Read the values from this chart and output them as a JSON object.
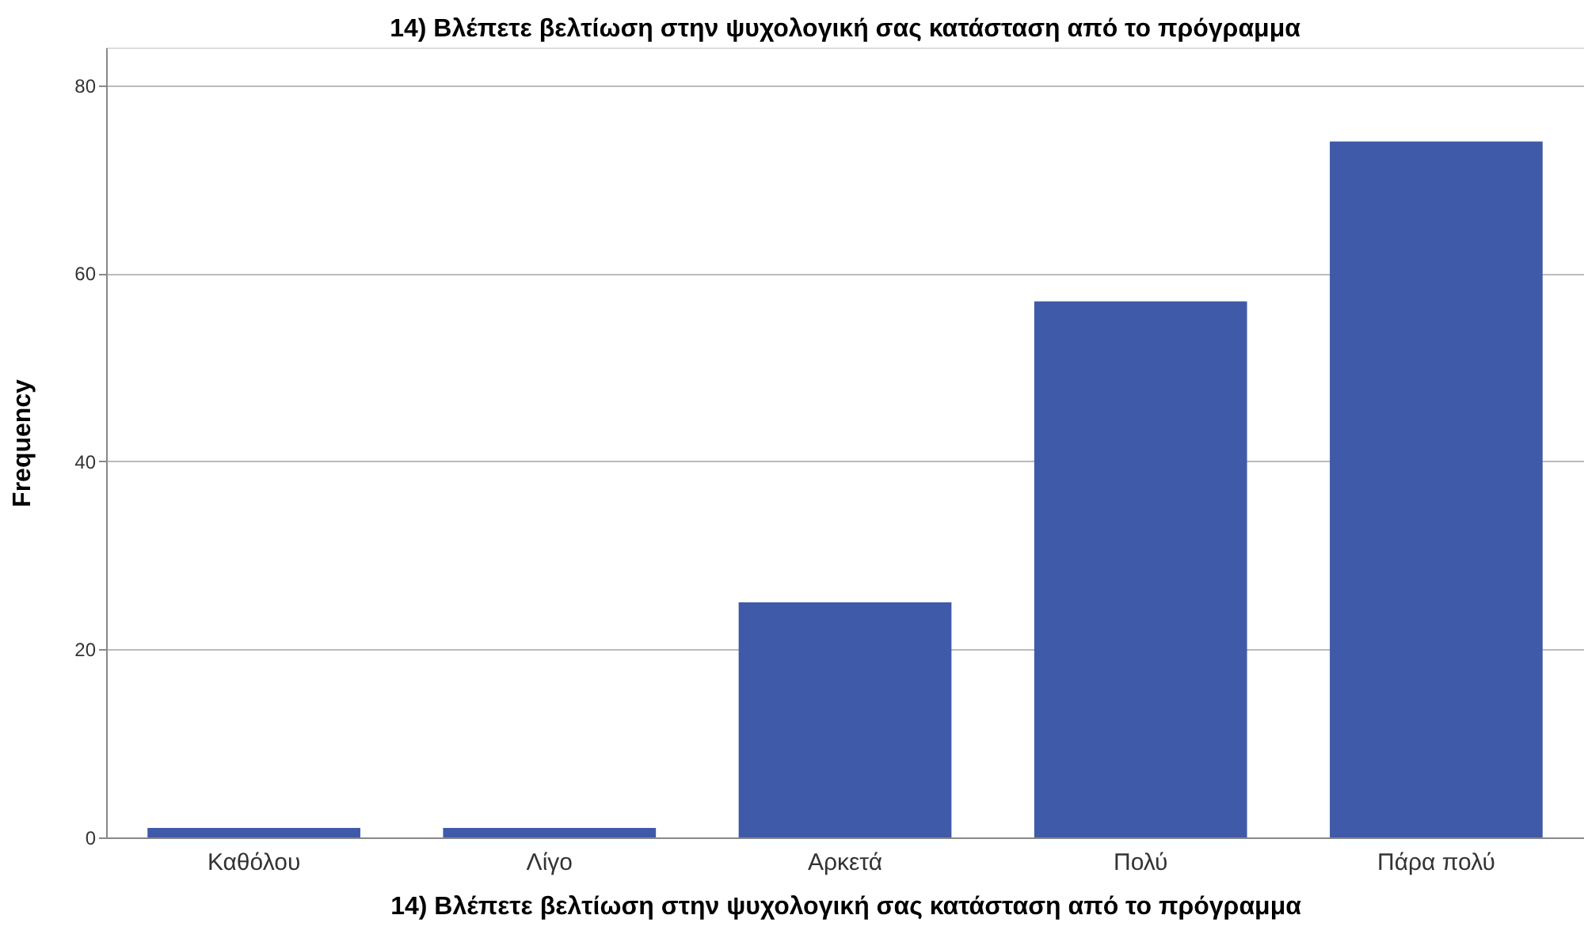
{
  "chart_data": {
    "type": "bar",
    "title": "14) Βλέπετε βελτίωση στην ψυχολογική σας κατάσταση από το πρόγραμμα",
    "xlabel": "14) Βλέπετε βελτίωση στην ψυχολογική σας κατάσταση από το πρόγραμμα",
    "ylabel": "Frequency",
    "categories": [
      "Καθόλου",
      "Λίγο",
      "Αρκετά",
      "Πολύ",
      "Πάρα πολύ"
    ],
    "values": [
      1,
      1,
      25,
      57,
      74
    ],
    "color": "#3f5aa8",
    "ylim": [
      0,
      84
    ],
    "yticks": [
      0,
      20,
      40,
      60,
      80
    ],
    "grid": "y"
  }
}
